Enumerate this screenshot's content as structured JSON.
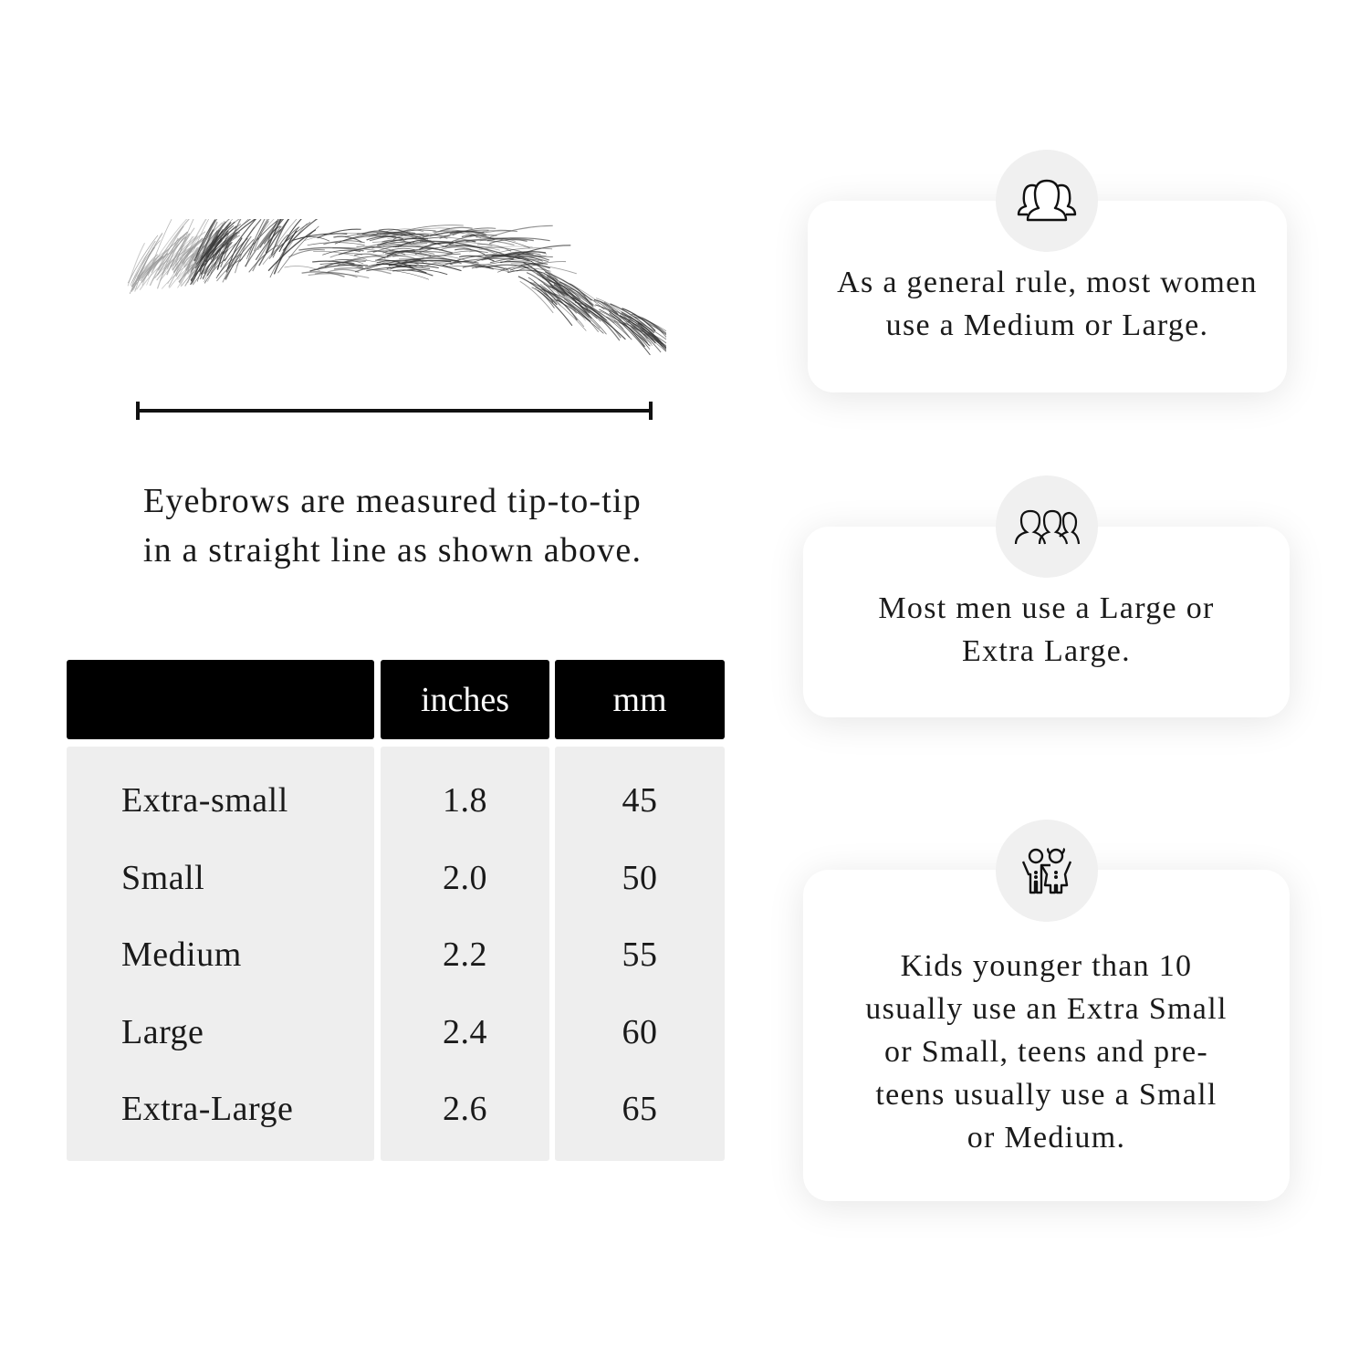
{
  "measure": {
    "caption_line1": "Eyebrows are measured tip-to-tip",
    "caption_line2": "in a straight line as shown above."
  },
  "table": {
    "headers": [
      "",
      "inches",
      "mm"
    ],
    "rows": [
      {
        "size": "Extra-small",
        "inches": "1.8",
        "mm": "45"
      },
      {
        "size": "Small",
        "inches": "2.0",
        "mm": "50"
      },
      {
        "size": "Medium",
        "inches": "2.2",
        "mm": "55"
      },
      {
        "size": "Large",
        "inches": "2.4",
        "mm": "60"
      },
      {
        "size": "Extra-Large",
        "inches": "2.6",
        "mm": "65"
      }
    ]
  },
  "cards": [
    {
      "icon": "women-group-icon",
      "text": "As a general rule, most women use a Medium or Large."
    },
    {
      "icon": "men-group-icon",
      "text": "Most men use a Large or Extra Large."
    },
    {
      "icon": "kids-icon",
      "text": "Kids younger than 10 usually use an Extra Small or Small, teens and pre-teens usually use a Small or Medium."
    }
  ],
  "colors": {
    "header_bg": "#000000",
    "body_bg": "#eeeeee",
    "icon_circle": "#f0f0f0"
  }
}
